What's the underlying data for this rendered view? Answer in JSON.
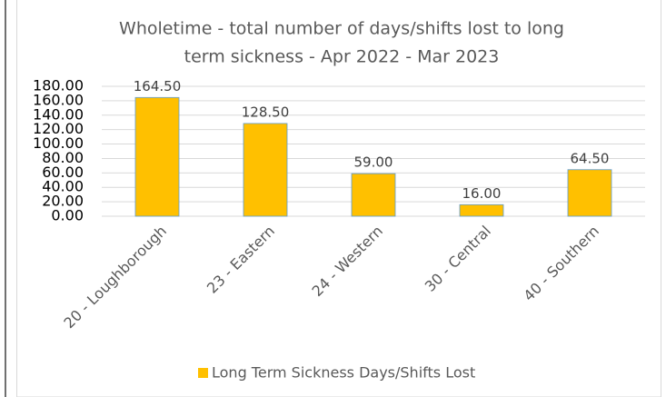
{
  "chart_data": {
    "type": "bar",
    "title": [
      "Wholetime - total number of days/shifts lost to long",
      "term sickness - Apr 2022 - Mar 2023"
    ],
    "categories": [
      "20 - Loughborough",
      "23 - Eastern",
      "24 - Western",
      "30 - Central",
      "40 - Southern"
    ],
    "series": [
      {
        "name": "Long Term Sickness Days/Shifts Lost",
        "color": "#ffc000",
        "values": [
          164.5,
          128.5,
          59,
          16,
          64.5
        ],
        "value_labels": [
          "164.50",
          "128.50",
          "59.00",
          "16.00",
          "64.50"
        ]
      }
    ],
    "ylim": [
      0,
      180
    ],
    "yticks": [
      {
        "value": 0,
        "label": "0.00"
      },
      {
        "value": 20,
        "label": "20.00"
      },
      {
        "value": 40,
        "label": "40.00"
      },
      {
        "value": 60,
        "label": "60.00"
      },
      {
        "value": 80,
        "label": "80.00"
      },
      {
        "value": 100,
        "label": "100.00"
      },
      {
        "value": 120,
        "label": "120.00"
      },
      {
        "value": 140,
        "label": "140.00"
      },
      {
        "value": 160,
        "label": "160.00"
      },
      {
        "value": 180,
        "label": "180.00"
      }
    ],
    "grid": true,
    "legend": "bottom"
  }
}
